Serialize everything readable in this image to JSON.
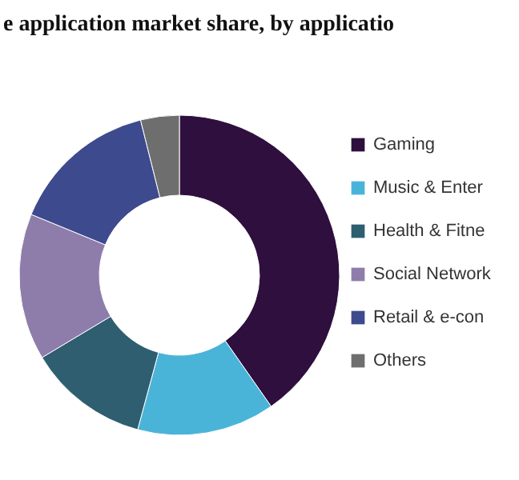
{
  "chart_data": {
    "type": "donut",
    "title": "e application market share, by applicatio",
    "categories": [
      "Gaming",
      "Music & Enter",
      "Health & Fitne",
      "Social Network",
      "Retail & e-con",
      "Others"
    ],
    "values": [
      40.3,
      13.9,
      12.2,
      14.8,
      14.9,
      3.9
    ],
    "colors": [
      "#2e0f3e",
      "#4ab4d8",
      "#2e5e70",
      "#8e7dab",
      "#3d4a8e",
      "#6e6e6e"
    ],
    "legend": "right"
  }
}
